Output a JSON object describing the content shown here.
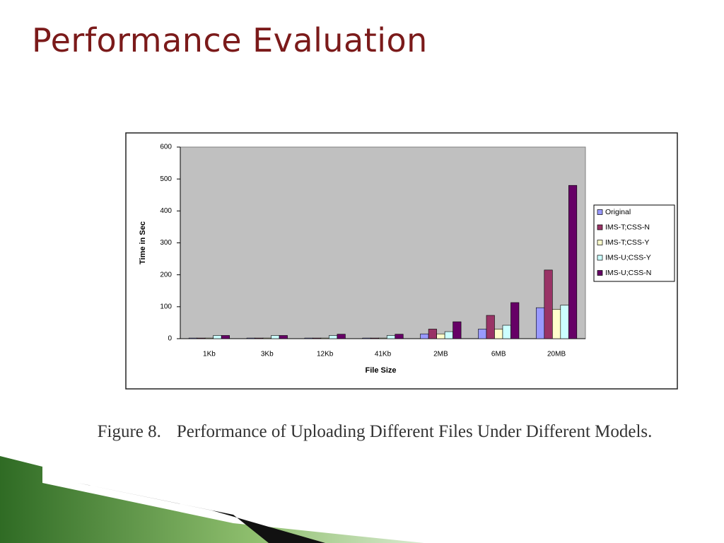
{
  "slide_title": "Performance Evaluation",
  "caption_label": "Figure 8.",
  "caption_text": "Performance of Uploading Different Files Under Different Models.",
  "chart_data": {
    "type": "bar",
    "x_label": "File Size",
    "y_label": "Time in Sec",
    "categories": [
      "1Kb",
      "3Kb",
      "12Kb",
      "41Kb",
      "2MB",
      "6MB",
      "20MB"
    ],
    "series": [
      {
        "name": "Original",
        "color": "#9999ff",
        "values": [
          2,
          2,
          2,
          2,
          15,
          30,
          97
        ]
      },
      {
        "name": "IMS-T;CSS-N",
        "color": "#993366",
        "values": [
          2,
          2,
          2,
          2,
          30,
          73,
          215
        ]
      },
      {
        "name": "IMS-T;CSS-Y",
        "color": "#ffffcc",
        "values": [
          2,
          2,
          2,
          2,
          15,
          30,
          92
        ]
      },
      {
        "name": "IMS-U;CSS-Y",
        "color": "#ccffff",
        "values": [
          10,
          10,
          10,
          10,
          22,
          42,
          105
        ]
      },
      {
        "name": "IMS-U;CSS-N",
        "color": "#660066",
        "values": [
          10,
          10,
          14,
          14,
          53,
          113,
          480
        ]
      }
    ],
    "ylim": [
      0,
      600
    ],
    "yticks": [
      0,
      100,
      200,
      300,
      400,
      500,
      600
    ],
    "plot_background": "#c0c0c0",
    "legend": "right"
  }
}
